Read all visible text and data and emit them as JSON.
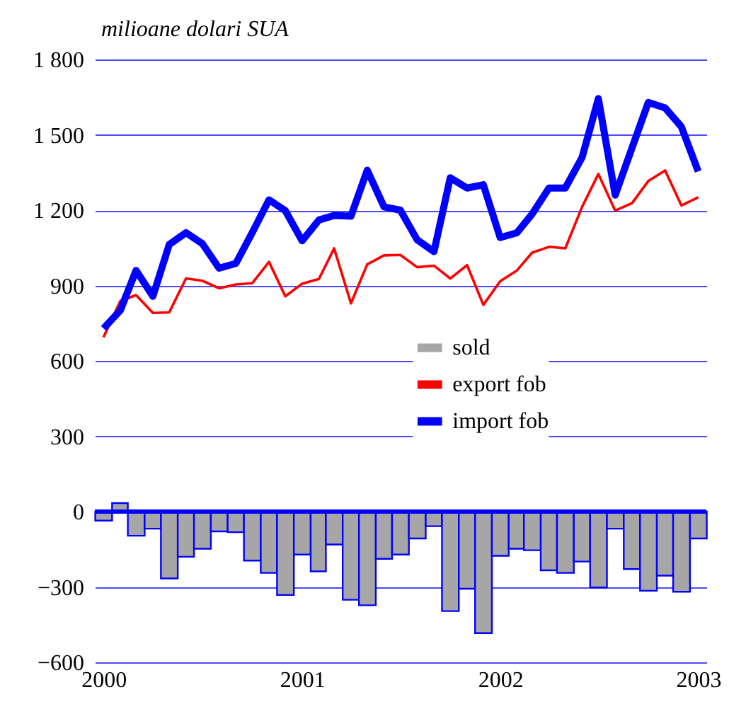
{
  "chart_data": {
    "type": "line",
    "ylabel": "milioane dolari SUA",
    "x": [
      "2000-01",
      "2000-02",
      "2000-03",
      "2000-04",
      "2000-05",
      "2000-06",
      "2000-07",
      "2000-08",
      "2000-09",
      "2000-10",
      "2000-11",
      "2000-12",
      "2001-01",
      "2001-02",
      "2001-03",
      "2001-04",
      "2001-05",
      "2001-06",
      "2001-07",
      "2001-08",
      "2001-09",
      "2001-10",
      "2001-11",
      "2001-12",
      "2002-01",
      "2002-02",
      "2002-03",
      "2002-04",
      "2002-05",
      "2002-06",
      "2002-07",
      "2002-08",
      "2002-09",
      "2002-10",
      "2002-11",
      "2002-12",
      "2003-01"
    ],
    "series": [
      {
        "name": "sold",
        "type": "bar",
        "color": "#a6a6a6",
        "values": [
          -36,
          34,
          -96,
          -68,
          -266,
          -180,
          -148,
          -79,
          -82,
          -195,
          -244,
          -332,
          -171,
          -238,
          -131,
          -351,
          -373,
          -188,
          -171,
          -107,
          -58,
          -396,
          -307,
          -484,
          -176,
          -148,
          -154,
          -234,
          -244,
          -199,
          -302,
          -68,
          -229,
          -315,
          -255,
          -319,
          -107
        ]
      },
      {
        "name": "export fob",
        "color": "#ff0000",
        "values": [
          694,
          838,
          862,
          791,
          793,
          928,
          919,
          889,
          904,
          909,
          994,
          857,
          907,
          926,
          1048,
          829,
          984,
          1020,
          1022,
          973,
          979,
          928,
          981,
          823,
          917,
          960,
          1031,
          1054,
          1048,
          1213,
          1344,
          1198,
          1228,
          1316,
          1358,
          1219,
          1251
        ]
      },
      {
        "name": "import fob",
        "color": "#0000ff",
        "values": [
          729,
          801,
          960,
          857,
          1063,
          1110,
          1067,
          969,
          988,
          1110,
          1241,
          1198,
          1078,
          1161,
          1179,
          1176,
          1359,
          1213,
          1200,
          1082,
          1035,
          1329,
          1288,
          1301,
          1091,
          1110,
          1185,
          1288,
          1288,
          1410,
          1644,
          1260,
          1448,
          1629,
          1607,
          1532,
          1354
        ]
      }
    ],
    "xlim": [
      "1999-12-16",
      "2003-01-16"
    ],
    "xticks": [
      "2000",
      "2001",
      "2002",
      "2003"
    ],
    "ylim": [
      -600,
      1800
    ],
    "yticks": [
      -600,
      -300,
      0,
      300,
      600,
      900,
      {
        "value": 1200,
        "label": "1 200"
      },
      {
        "value": 1500,
        "label": "1 500"
      },
      {
        "value": 1800,
        "label": "1 800"
      }
    ],
    "ref_lines": [
      {
        "axis": "y",
        "value": 0,
        "color": "#0000ff"
      }
    ],
    "grid": "y",
    "legend": "right"
  }
}
